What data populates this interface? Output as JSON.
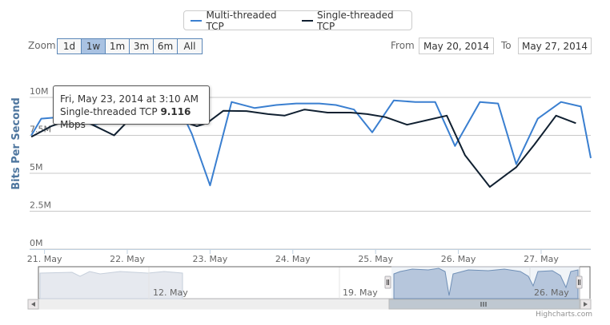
{
  "legend": {
    "items": [
      {
        "label": "Multi-threaded TCP",
        "color": "#3a7fd0"
      },
      {
        "label": "Single-threaded TCP",
        "color": "#102031"
      }
    ]
  },
  "range_selector": {
    "zoom_label": "Zoom",
    "buttons": [
      "1d",
      "1w",
      "1m",
      "3m",
      "6m",
      "All"
    ],
    "selected": "1w",
    "from_label": "From",
    "from_value": "May 20, 2014",
    "to_label": "To",
    "to_value": "May 27, 2014"
  },
  "tooltip": {
    "line1": "Fri, May 23, 2014 at 3:10 AM",
    "series": "Single-threaded TCP",
    "value": "9.116",
    "unit": "Mbps"
  },
  "navigator": {
    "labels": [
      "12. May",
      "19. May",
      "26. May"
    ]
  },
  "credits": "Highcharts.com",
  "chart_data": {
    "type": "line",
    "ylabel": "Bits Per Second",
    "ylim": [
      0,
      10
    ],
    "y_ticks": [
      {
        "value": 0,
        "label": "0M"
      },
      {
        "value": 2.5,
        "label": "2.5M"
      },
      {
        "value": 5,
        "label": "5M"
      },
      {
        "value": 7.5,
        "label": "7.5M"
      },
      {
        "value": 10,
        "label": "10M"
      }
    ],
    "x_ticks": [
      {
        "day": 21,
        "label": "21. May"
      },
      {
        "day": 22,
        "label": "22. May"
      },
      {
        "day": 23,
        "label": "23. May"
      },
      {
        "day": 24,
        "label": "24. May"
      },
      {
        "day": 25,
        "label": "25. May"
      },
      {
        "day": 26,
        "label": "26. May"
      },
      {
        "day": 27,
        "label": "27. May"
      }
    ],
    "xlim": [
      20.82,
      27.6
    ],
    "grid": true,
    "series": [
      {
        "name": "Multi-threaded TCP",
        "color": "#3a7fd0",
        "points": [
          [
            20.84,
            7.5
          ],
          [
            20.96,
            8.6
          ],
          [
            21.18,
            8.7
          ],
          [
            21.38,
            8.4
          ],
          [
            21.6,
            8.2
          ],
          [
            21.78,
            8.4
          ],
          [
            22.05,
            8.8
          ],
          [
            22.28,
            8.9
          ],
          [
            22.5,
            9.3
          ],
          [
            22.66,
            9.0
          ],
          [
            22.78,
            7.6
          ],
          [
            23.0,
            4.2
          ],
          [
            23.26,
            9.7
          ],
          [
            23.54,
            9.3
          ],
          [
            23.8,
            9.5
          ],
          [
            24.04,
            9.6
          ],
          [
            24.32,
            9.6
          ],
          [
            24.52,
            9.5
          ],
          [
            24.74,
            9.2
          ],
          [
            24.96,
            7.7
          ],
          [
            25.22,
            9.8
          ],
          [
            25.48,
            9.7
          ],
          [
            25.72,
            9.7
          ],
          [
            25.96,
            6.8
          ],
          [
            26.26,
            9.7
          ],
          [
            26.48,
            9.6
          ],
          [
            26.7,
            5.6
          ],
          [
            26.96,
            8.6
          ],
          [
            27.24,
            9.7
          ],
          [
            27.48,
            9.4
          ],
          [
            27.6,
            6.0
          ]
        ]
      },
      {
        "name": "Single-threaded TCP",
        "color": "#102031",
        "points": [
          [
            20.84,
            7.4
          ],
          [
            21.08,
            8.1
          ],
          [
            21.34,
            8.6
          ],
          [
            21.54,
            8.3
          ],
          [
            21.84,
            7.5
          ],
          [
            22.0,
            8.4
          ],
          [
            22.26,
            8.6
          ],
          [
            22.56,
            8.6
          ],
          [
            22.84,
            8.1
          ],
          [
            22.96,
            8.3
          ],
          [
            23.16,
            9.116
          ],
          [
            23.44,
            9.1
          ],
          [
            23.7,
            8.9
          ],
          [
            23.9,
            8.8
          ],
          [
            24.14,
            9.2
          ],
          [
            24.42,
            9.0
          ],
          [
            24.7,
            9.0
          ],
          [
            24.9,
            8.9
          ],
          [
            25.12,
            8.7
          ],
          [
            25.38,
            8.2
          ],
          [
            25.62,
            8.5
          ],
          [
            25.86,
            8.8
          ],
          [
            26.08,
            6.2
          ],
          [
            26.38,
            4.1
          ],
          [
            26.7,
            5.4
          ],
          [
            26.92,
            6.9
          ],
          [
            27.18,
            8.8
          ],
          [
            27.42,
            8.3
          ]
        ]
      }
    ]
  }
}
